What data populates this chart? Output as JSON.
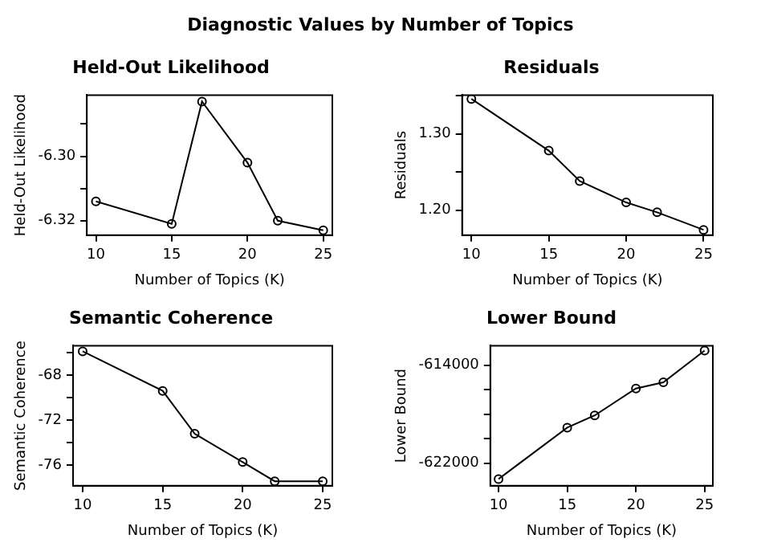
{
  "chart_data": [
    {
      "type": "line",
      "title": "Held-Out Likelihood",
      "xlabel": "Number of Topics (K)",
      "ylabel": "Held-Out Likelihood",
      "annotations": [
        "Diagnostic Values by Number of Topics"
      ],
      "marker": "circle",
      "line_style": "solid",
      "grid": false,
      "x": [
        10,
        15,
        17,
        20,
        22,
        25
      ],
      "values": [
        -6.314,
        -6.321,
        -6.283,
        -6.302,
        -6.32,
        -6.323
      ],
      "xlim": [
        9.4,
        25.6
      ],
      "xticks": [
        10,
        15,
        20,
        25
      ],
      "ylim": [
        -6.3245,
        -6.281
      ],
      "yticks": [
        {
          "value": -6.32,
          "label": "-6.32"
        },
        {
          "value": -6.31,
          "label": null
        },
        {
          "value": -6.3,
          "label": "-6.30"
        },
        {
          "value": -6.29,
          "label": null
        }
      ]
    },
    {
      "type": "line",
      "title": "Residuals",
      "xlabel": "Number of Topics (K)",
      "ylabel": "Residuals",
      "marker": "circle",
      "line_style": "solid",
      "grid": false,
      "x": [
        10,
        15,
        17,
        20,
        22,
        25
      ],
      "values": [
        1.346,
        1.278,
        1.238,
        1.21,
        1.197,
        1.174
      ],
      "xlim": [
        9.4,
        25.6
      ],
      "xticks": [
        10,
        15,
        20,
        25
      ],
      "ylim": [
        1.167,
        1.351
      ],
      "yticks": [
        {
          "value": 1.2,
          "label": "1.20"
        },
        {
          "value": 1.25,
          "label": null
        },
        {
          "value": 1.3,
          "label": "1.30"
        },
        {
          "value": 1.35,
          "label": null
        }
      ]
    },
    {
      "type": "line",
      "title": "Semantic Coherence",
      "xlabel": "Number of Topics (K)",
      "ylabel": "Semantic Coherence",
      "marker": "circle",
      "line_style": "solid",
      "grid": false,
      "x": [
        10,
        15,
        17,
        20,
        22,
        25
      ],
      "values": [
        -65.9,
        -69.4,
        -73.2,
        -75.7,
        -77.4,
        -77.4
      ],
      "xlim": [
        9.4,
        25.6
      ],
      "xticks": [
        10,
        15,
        20,
        25
      ],
      "ylim": [
        -77.8,
        -65.4
      ],
      "yticks": [
        -76,
        {
          "value": -74,
          "label": null
        },
        -72,
        {
          "value": -70,
          "label": null
        },
        -68,
        {
          "value": -66,
          "label": null
        }
      ]
    },
    {
      "type": "line",
      "title": "Lower Bound",
      "xlabel": "Number of Topics (K)",
      "ylabel": "Lower Bound",
      "marker": "circle",
      "line_style": "solid",
      "grid": false,
      "x": [
        10,
        15,
        17,
        20,
        22,
        25
      ],
      "values": [
        -623300,
        -619100,
        -618100,
        -615900,
        -615400,
        -612800
      ],
      "xlim": [
        9.4,
        25.6
      ],
      "xticks": [
        10,
        15,
        20,
        25
      ],
      "ylim": [
        -623850,
        -612400
      ],
      "yticks": [
        -622000,
        {
          "value": -620000,
          "label": null
        },
        {
          "value": -618000,
          "label": null
        },
        {
          "value": -616000,
          "label": null
        },
        -614000
      ]
    }
  ]
}
